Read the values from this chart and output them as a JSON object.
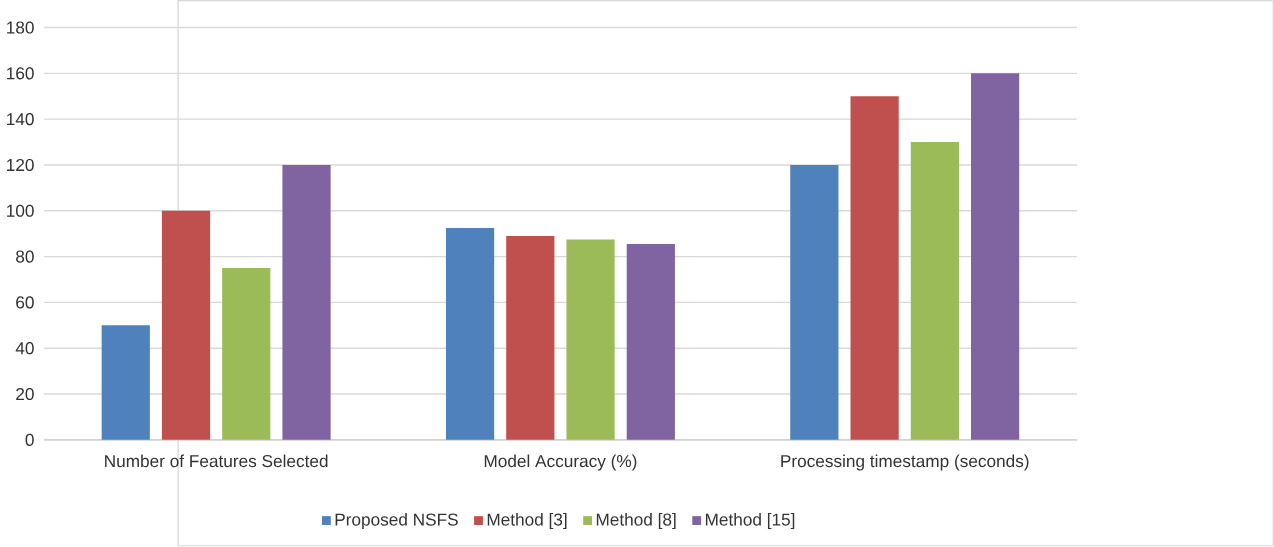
{
  "chart_data": {
    "type": "bar",
    "categories": [
      "Number of Features Selected",
      "Model Accuracy (%)",
      "Processing timestamp (seconds)"
    ],
    "series": [
      {
        "name": "Proposed NSFS",
        "color": "#4f81bd",
        "values": [
          50,
          92.5,
          120
        ]
      },
      {
        "name": "Method [3]",
        "color": "#c0504d",
        "values": [
          100,
          89,
          150
        ]
      },
      {
        "name": "Method [8]",
        "color": "#9bbb59",
        "values": [
          75,
          87.5,
          130
        ]
      },
      {
        "name": "Method [15]",
        "color": "#8064a2",
        "values": [
          120,
          85.5,
          160
        ]
      }
    ],
    "ylim": [
      0,
      180
    ],
    "yticks": [
      0,
      20,
      40,
      60,
      80,
      100,
      120,
      140,
      160,
      180
    ],
    "grid": "y",
    "legend": "bottom"
  }
}
